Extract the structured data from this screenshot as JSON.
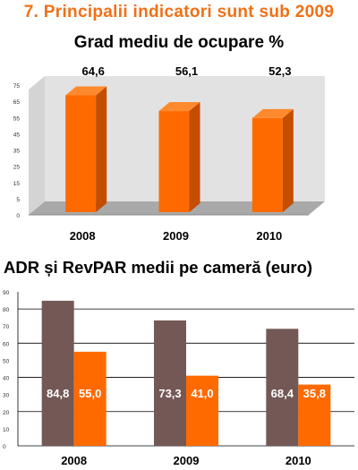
{
  "page": {
    "main_title": "7. Principalii indicatori sunt sub 2009"
  },
  "chart_data": [
    {
      "type": "bar",
      "title": "Grad mediu de ocupare %",
      "categories": [
        "2008",
        "2009",
        "2010"
      ],
      "series": [
        {
          "values": [
            64.6,
            56.1,
            52.3
          ],
          "labels": [
            "64,6",
            "56,1",
            "52,3"
          ]
        }
      ],
      "ylim": [
        0,
        70
      ],
      "yticks": [
        0,
        5,
        15,
        25,
        35,
        45,
        55,
        65,
        75
      ],
      "three_d": true,
      "grid": false,
      "colors": {
        "bar": "#ff6a00",
        "bar_side": "#c44d00",
        "bar_top": "#ff8a2e",
        "wall": "#e2e2e2",
        "floor": "#a9a9a9"
      }
    },
    {
      "type": "bar",
      "title": "ADR și RevPAR medii pe cameră (euro)",
      "categories": [
        "2008",
        "2009",
        "2010"
      ],
      "series": [
        {
          "values": [
            84.8,
            73.3,
            68.4
          ],
          "labels": [
            "84,8",
            "73,3",
            "68,4"
          ],
          "color": "#735855"
        },
        {
          "values": [
            55.0,
            41.0,
            35.8
          ],
          "labels": [
            "55,0",
            "41,0",
            "35,8"
          ],
          "color": "#ff6a00"
        }
      ],
      "ylim": [
        0,
        90
      ],
      "yticks": [
        0,
        10,
        20,
        30,
        40,
        50,
        60,
        70,
        80,
        90
      ],
      "grid": true
    }
  ]
}
